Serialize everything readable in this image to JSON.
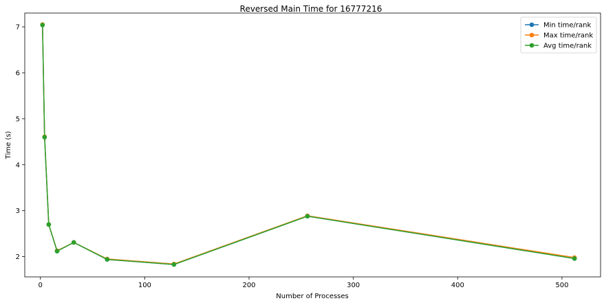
{
  "chart_data": {
    "type": "line",
    "title": "Reversed Main Time for 16777216",
    "xlabel": "Number of Processes",
    "ylabel": "Time (s)",
    "x": [
      2,
      4,
      8,
      16,
      32,
      64,
      128,
      256,
      512
    ],
    "xlim": [
      -15,
      537
    ],
    "ylim": [
      1.56,
      7.3
    ],
    "xticks": [
      0,
      100,
      200,
      300,
      400,
      500
    ],
    "yticks": [
      2,
      3,
      4,
      5,
      6,
      7
    ],
    "grid": false,
    "legend_position": "top-right",
    "series": [
      {
        "name": "Min time/rank",
        "color": "#1f77b4",
        "values": [
          7.04,
          4.6,
          2.7,
          2.12,
          2.31,
          1.94,
          1.83,
          2.88,
          1.96
        ]
      },
      {
        "name": "Max time/rank",
        "color": "#ff7f0e",
        "values": [
          7.05,
          4.61,
          2.7,
          2.13,
          2.31,
          1.95,
          1.84,
          2.89,
          1.98
        ]
      },
      {
        "name": "Avg time/rank",
        "color": "#2ca02c",
        "values": [
          7.04,
          4.6,
          2.7,
          2.12,
          2.31,
          1.94,
          1.83,
          2.88,
          1.96
        ]
      }
    ]
  }
}
